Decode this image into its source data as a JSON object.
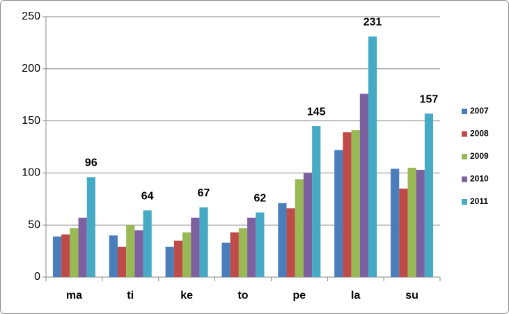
{
  "chart_data": {
    "type": "bar",
    "categories": [
      "ma",
      "ti",
      "ke",
      "to",
      "pe",
      "la",
      "su"
    ],
    "series": [
      {
        "name": "2007",
        "color": "#4a7ebb",
        "values": [
          39,
          40,
          29,
          33,
          71,
          122,
          104
        ]
      },
      {
        "name": "2008",
        "color": "#be4b48",
        "values": [
          41,
          29,
          35,
          43,
          66,
          139,
          85
        ]
      },
      {
        "name": "2009",
        "color": "#98b954",
        "values": [
          47,
          50,
          43,
          47,
          94,
          141,
          105
        ]
      },
      {
        "name": "2010",
        "color": "#7d60a0",
        "values": [
          57,
          45,
          57,
          57,
          100,
          176,
          103
        ]
      },
      {
        "name": "2011",
        "color": "#46aac5",
        "values": [
          96,
          64,
          67,
          62,
          145,
          231,
          157
        ],
        "data_labels": true
      }
    ],
    "ylim": [
      0,
      250
    ],
    "yticks": [
      0,
      50,
      100,
      150,
      200,
      250
    ],
    "grid": true,
    "legend": "right"
  }
}
